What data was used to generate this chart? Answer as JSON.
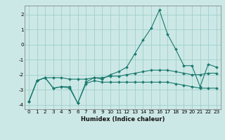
{
  "xlabel": "Humidex (Indice chaleur)",
  "bg_color": "#cce8e6",
  "grid_color": "#9ecfcc",
  "line_color": "#1a7a6e",
  "xlim": [
    -0.5,
    23.5
  ],
  "ylim": [
    -4.3,
    2.6
  ],
  "yticks": [
    -4,
    -3,
    -2,
    -1,
    0,
    1,
    2
  ],
  "xticks": [
    0,
    1,
    2,
    3,
    4,
    5,
    6,
    7,
    8,
    9,
    10,
    11,
    12,
    13,
    14,
    15,
    16,
    17,
    18,
    19,
    20,
    21,
    22,
    23
  ],
  "line1_x": [
    0,
    1,
    2,
    3,
    4,
    5,
    6,
    7,
    8,
    9,
    10,
    11,
    12,
    13,
    14,
    15,
    16,
    17,
    18,
    19,
    20,
    21,
    22,
    23
  ],
  "line1_y": [
    -3.8,
    -2.4,
    -2.2,
    -2.9,
    -2.8,
    -2.8,
    -3.9,
    -2.5,
    -2.2,
    -2.3,
    -2.0,
    -1.8,
    -1.5,
    -0.6,
    0.3,
    1.1,
    2.3,
    0.7,
    -0.3,
    -1.4,
    -1.4,
    -2.8,
    -1.3,
    -1.5
  ],
  "line2_x": [
    0,
    1,
    2,
    3,
    4,
    5,
    6,
    7,
    8,
    9,
    10,
    11,
    12,
    13,
    14,
    15,
    16,
    17,
    18,
    19,
    20,
    21,
    22,
    23
  ],
  "line2_y": [
    -3.8,
    -2.4,
    -2.2,
    -2.2,
    -2.2,
    -2.3,
    -2.3,
    -2.3,
    -2.2,
    -2.2,
    -2.1,
    -2.1,
    -2.0,
    -1.9,
    -1.8,
    -1.7,
    -1.7,
    -1.7,
    -1.8,
    -1.9,
    -2.0,
    -2.0,
    -1.9,
    -1.9
  ],
  "line3_x": [
    0,
    1,
    2,
    3,
    4,
    5,
    6,
    7,
    8,
    9,
    10,
    11,
    12,
    13,
    14,
    15,
    16,
    17,
    18,
    19,
    20,
    21,
    22,
    23
  ],
  "line3_y": [
    -3.8,
    -2.4,
    -2.2,
    -2.9,
    -2.8,
    -2.9,
    -3.9,
    -2.6,
    -2.4,
    -2.5,
    -2.5,
    -2.5,
    -2.5,
    -2.5,
    -2.5,
    -2.5,
    -2.5,
    -2.5,
    -2.6,
    -2.7,
    -2.8,
    -2.9,
    -2.9,
    -2.9
  ],
  "xlabel_fontsize": 6.0,
  "tick_fontsize": 5.2
}
